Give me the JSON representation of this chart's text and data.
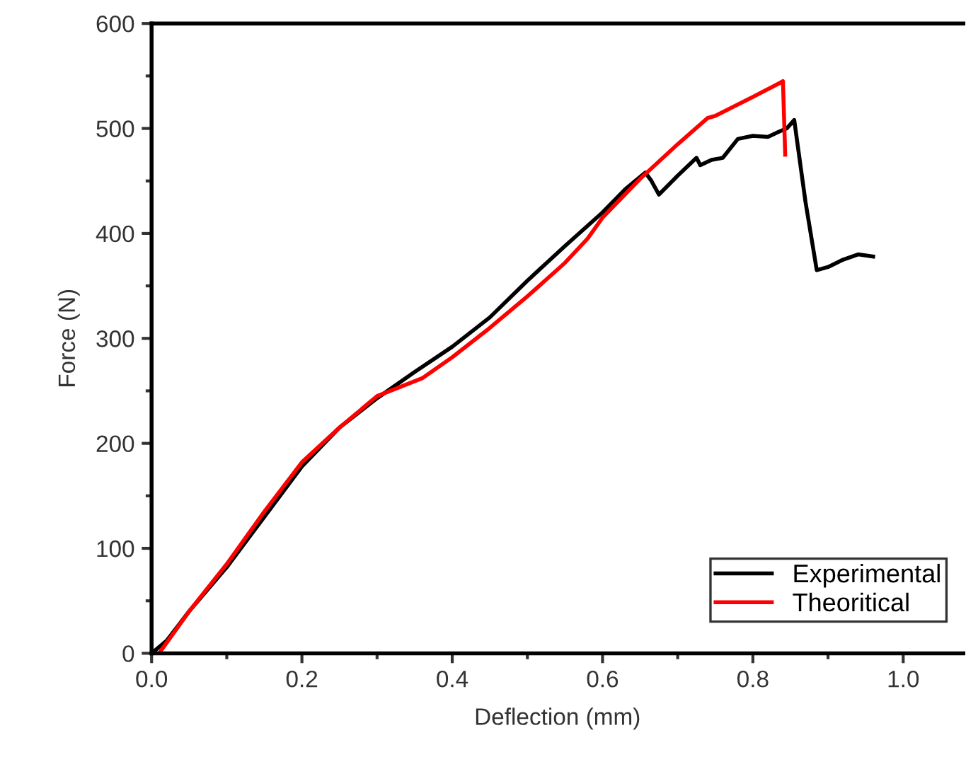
{
  "chart_data": {
    "type": "line",
    "xlabel": "Deflection (mm)",
    "ylabel": "Force (N)",
    "xlim": [
      0,
      1.08
    ],
    "ylim": [
      0,
      600
    ],
    "xticks": [
      {
        "value": 0,
        "label": "0.0"
      },
      0.2,
      0.4,
      0.6,
      0.8,
      {
        "value": 1,
        "label": "1.0"
      }
    ],
    "yticks": [
      0,
      100,
      200,
      300,
      400,
      500,
      600
    ],
    "grid": false,
    "legend": "bottom right",
    "marker": "none",
    "line_style": "solid",
    "series": [
      {
        "name": "Experimental",
        "color": "#000000",
        "x": [
          0,
          0.02,
          0.05,
          0.1,
          0.15,
          0.2,
          0.25,
          0.3,
          0.35,
          0.4,
          0.45,
          0.5,
          0.55,
          0.6,
          0.63,
          0.657,
          0.665,
          0.675,
          0.7,
          0.725,
          0.73,
          0.745,
          0.76,
          0.78,
          0.8,
          0.82,
          0.835,
          0.845,
          0.855,
          0.87,
          0.885,
          0.9,
          0.92,
          0.94,
          0.96
        ],
        "values": [
          0,
          12,
          40,
          82,
          130,
          178,
          215,
          243,
          268,
          292,
          320,
          355,
          388,
          420,
          442,
          458,
          450,
          437,
          455,
          472,
          465,
          470,
          472,
          490,
          493,
          492,
          497,
          500,
          508,
          430,
          365,
          368,
          375,
          380,
          378
        ]
      },
      {
        "name": "Theoritical",
        "color": "#ff0000",
        "x": [
          0.01,
          0.05,
          0.1,
          0.15,
          0.2,
          0.25,
          0.3,
          0.36,
          0.4,
          0.45,
          0.5,
          0.55,
          0.58,
          0.6,
          0.65,
          0.7,
          0.74,
          0.75,
          0.8,
          0.835,
          0.84,
          0.843
        ],
        "values": [
          0,
          40,
          85,
          135,
          182,
          215,
          245,
          262,
          282,
          310,
          340,
          372,
          395,
          415,
          452,
          485,
          510,
          512,
          530,
          543,
          545,
          475
        ]
      }
    ]
  }
}
